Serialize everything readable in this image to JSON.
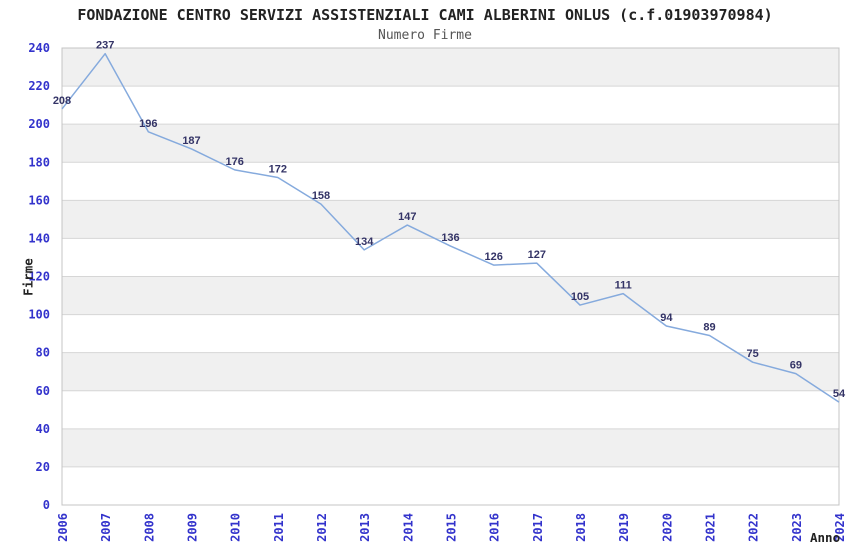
{
  "header": {
    "title": "FONDAZIONE CENTRO SERVIZI ASSISTENZIALI CAMI ALBERINI ONLUS (c.f.01903970984)",
    "subtitle": "Numero Firme"
  },
  "colors": {
    "background": "#ffffff",
    "title": "#222222",
    "subtitle": "#555555",
    "axis_title": "#222222",
    "line": "#85aadd",
    "point_label": "#333366",
    "tick_label": "#3333cc",
    "band": "#f0f0f0",
    "grid": "#d6d6d6",
    "border": "#c4c4c4"
  },
  "chart_data": {
    "type": "line",
    "title": "FONDAZIONE CENTRO SERVIZI ASSISTENZIALI CAMI ALBERINI ONLUS (c.f.01903970984)",
    "subtitle": "Numero Firme",
    "xlabel": "Anno",
    "ylabel": "Firme",
    "categories": [
      "2006",
      "2007",
      "2008",
      "2009",
      "2010",
      "2011",
      "2012",
      "2013",
      "2014",
      "2015",
      "2016",
      "2017",
      "2018",
      "2019",
      "2020",
      "2021",
      "2022",
      "2023",
      "2024"
    ],
    "values": [
      208,
      237,
      196,
      187,
      176,
      172,
      158,
      134,
      147,
      136,
      126,
      127,
      105,
      111,
      94,
      89,
      75,
      69,
      54
    ],
    "ylim": [
      0,
      240
    ],
    "ytick_step": 20,
    "yticks": [
      0,
      20,
      40,
      60,
      80,
      100,
      120,
      140,
      160,
      180,
      200,
      220,
      240
    ],
    "grid": "horizontal",
    "bands": "alternating-gray-every-other-20",
    "legend": "none",
    "point_labels": true,
    "x_tick_rotation": -90
  }
}
